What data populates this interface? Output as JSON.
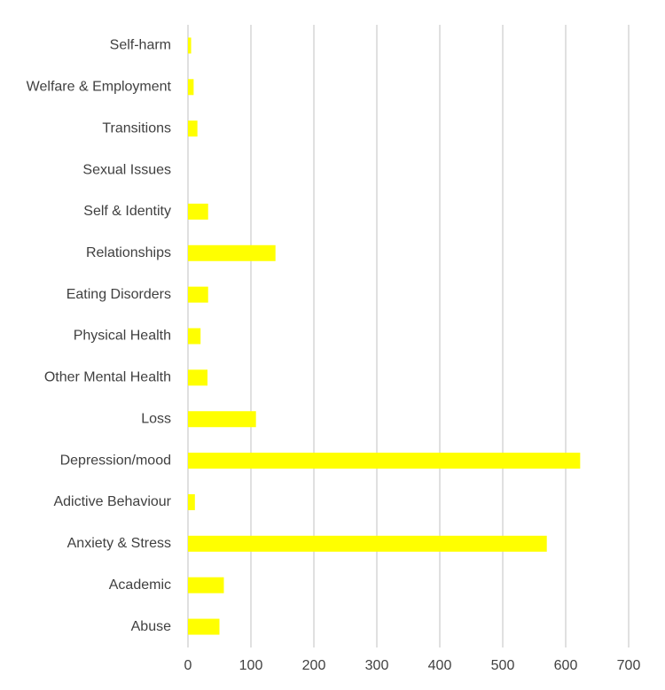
{
  "chart_data": {
    "type": "bar",
    "orientation": "horizontal",
    "title": "",
    "xlabel": "",
    "ylabel": "",
    "categories": [
      "Self-harm",
      "Welfare & Employment",
      "Transitions",
      "Sexual Issues",
      "Self & Identity",
      "Relationships",
      "Eating Disorders",
      "Physical Health",
      "Other Mental Health",
      "Loss",
      "Depression/mood",
      "Adictive Behaviour",
      "Anxiety & Stress",
      "Academic",
      "Abuse"
    ],
    "values": [
      5,
      9,
      15,
      0,
      32,
      139,
      32,
      20,
      31,
      108,
      623,
      11,
      570,
      57,
      50
    ],
    "xlim": [
      0,
      700
    ],
    "x_ticks": [
      0,
      100,
      200,
      300,
      400,
      500,
      600,
      700
    ],
    "grid": "vertical",
    "legend": "none",
    "bar_color": "#FFFF00"
  }
}
